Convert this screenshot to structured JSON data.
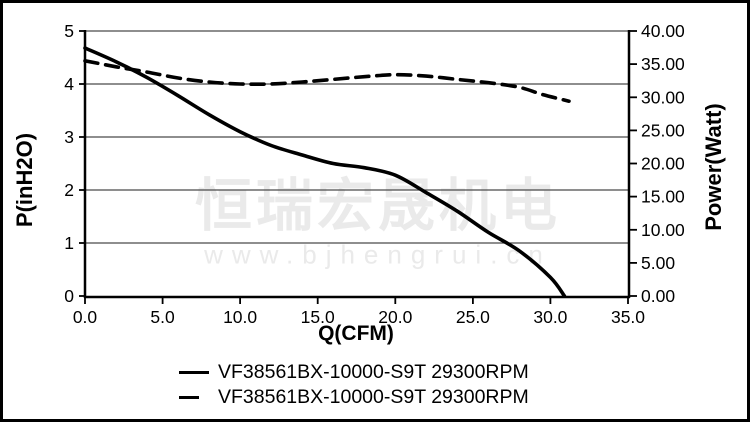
{
  "page": {
    "background": "#ffffff",
    "border_color": "#000000",
    "text_color": "#000000",
    "gridline_color": "#4a4a4a",
    "watermark_color": "#eaeaea"
  },
  "watermark": {
    "line1": "恒瑞宏晟机电",
    "line2": "www.bjhengrui.cn"
  },
  "chart_data": {
    "type": "line",
    "title": "",
    "xlabel": "Q(CFM)",
    "ylabel_left": "P(inH2O)",
    "ylabel_right": "Power(Watt)",
    "x_range": [
      0,
      35
    ],
    "y_left_range": [
      0,
      5
    ],
    "y_right_range": [
      0,
      40
    ],
    "grid": "horizontal only, at left-axis integer values",
    "legend_position": "bottom",
    "x_ticks": [
      0,
      5,
      10,
      15,
      20,
      25,
      30,
      35
    ],
    "x_tick_labels": [
      "0.0",
      "5.0",
      "10.0",
      "15.0",
      "20.0",
      "25.0",
      "30.0",
      "35.0"
    ],
    "y_left_ticks": [
      0,
      1,
      2,
      3,
      4,
      5
    ],
    "y_left_tick_labels": [
      "0",
      "1",
      "2",
      "3",
      "4",
      "5"
    ],
    "y_left_grid_values": [
      1,
      2,
      3,
      4,
      5
    ],
    "y_right_ticks": [
      0,
      5,
      10,
      15,
      20,
      25,
      30,
      35,
      40
    ],
    "y_right_tick_labels": [
      "0.00",
      "5.00",
      "10.00",
      "15.00",
      "20.00",
      "25.00",
      "30.00",
      "35.00",
      "40.00"
    ],
    "series": [
      {
        "name": "VF38561BX-10000-S9T 29300RPM",
        "measure": "static pressure P (inH2O)",
        "axis": "left",
        "style": "solid",
        "color": "#000000",
        "points": [
          [
            0,
            4.68
          ],
          [
            2,
            4.42
          ],
          [
            4,
            4.12
          ],
          [
            6,
            3.78
          ],
          [
            8,
            3.42
          ],
          [
            10,
            3.1
          ],
          [
            12,
            2.84
          ],
          [
            14,
            2.66
          ],
          [
            16,
            2.5
          ],
          [
            18,
            2.42
          ],
          [
            20,
            2.28
          ],
          [
            22,
            1.95
          ],
          [
            24,
            1.6
          ],
          [
            26,
            1.2
          ],
          [
            28,
            0.85
          ],
          [
            30,
            0.35
          ],
          [
            30.9,
            0.0
          ]
        ]
      },
      {
        "name": "VF38561BX-10000-S9T 29300RPM",
        "measure": "power (Watt)",
        "axis": "right",
        "style": "dashed",
        "color": "#000000",
        "points": [
          [
            0,
            35.5
          ],
          [
            2,
            34.6
          ],
          [
            4,
            33.8
          ],
          [
            6,
            32.9
          ],
          [
            8,
            32.3
          ],
          [
            10,
            32.0
          ],
          [
            12,
            32.0
          ],
          [
            14,
            32.3
          ],
          [
            16,
            32.7
          ],
          [
            18,
            33.1
          ],
          [
            20,
            33.4
          ],
          [
            22,
            33.2
          ],
          [
            24,
            32.7
          ],
          [
            26,
            32.2
          ],
          [
            28,
            31.5
          ],
          [
            29.5,
            30.4
          ],
          [
            31.2,
            29.4
          ]
        ]
      }
    ]
  },
  "legend": {
    "items": [
      {
        "label": "VF38561BX-10000-S9T 29300RPM",
        "style": "solid"
      },
      {
        "label": "VF38561BX-10000-S9T 29300RPM",
        "style": "dashed"
      }
    ]
  }
}
